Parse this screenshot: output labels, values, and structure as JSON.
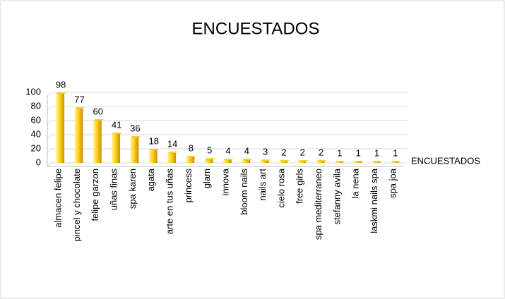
{
  "chart_data": {
    "type": "bar",
    "title": "ENCUESTADOS",
    "categories": [
      "almacen felipe",
      "pincel y chocolate",
      "felipe garzon",
      "uñas finas",
      "spa karen",
      "agata",
      "arte en tus uñas",
      "princess",
      "glam",
      "innova",
      "bloom nails",
      "nails art",
      "cielo rosa",
      "free girls",
      "spa mediterraneo",
      "stefanny avila",
      "la nena",
      "laskmi nails spa",
      "spa joa"
    ],
    "series": [
      {
        "name": "ENCUESTADOS",
        "color": "#f5c000",
        "values": [
          98,
          77,
          60,
          41,
          36,
          18,
          14,
          8,
          5,
          4,
          4,
          3,
          2,
          2,
          2,
          1,
          1,
          1,
          1
        ]
      }
    ],
    "ylim": [
      0,
      100
    ],
    "yticks": [
      0,
      20,
      40,
      60,
      80,
      100
    ],
    "grid": true,
    "legend": "right"
  }
}
